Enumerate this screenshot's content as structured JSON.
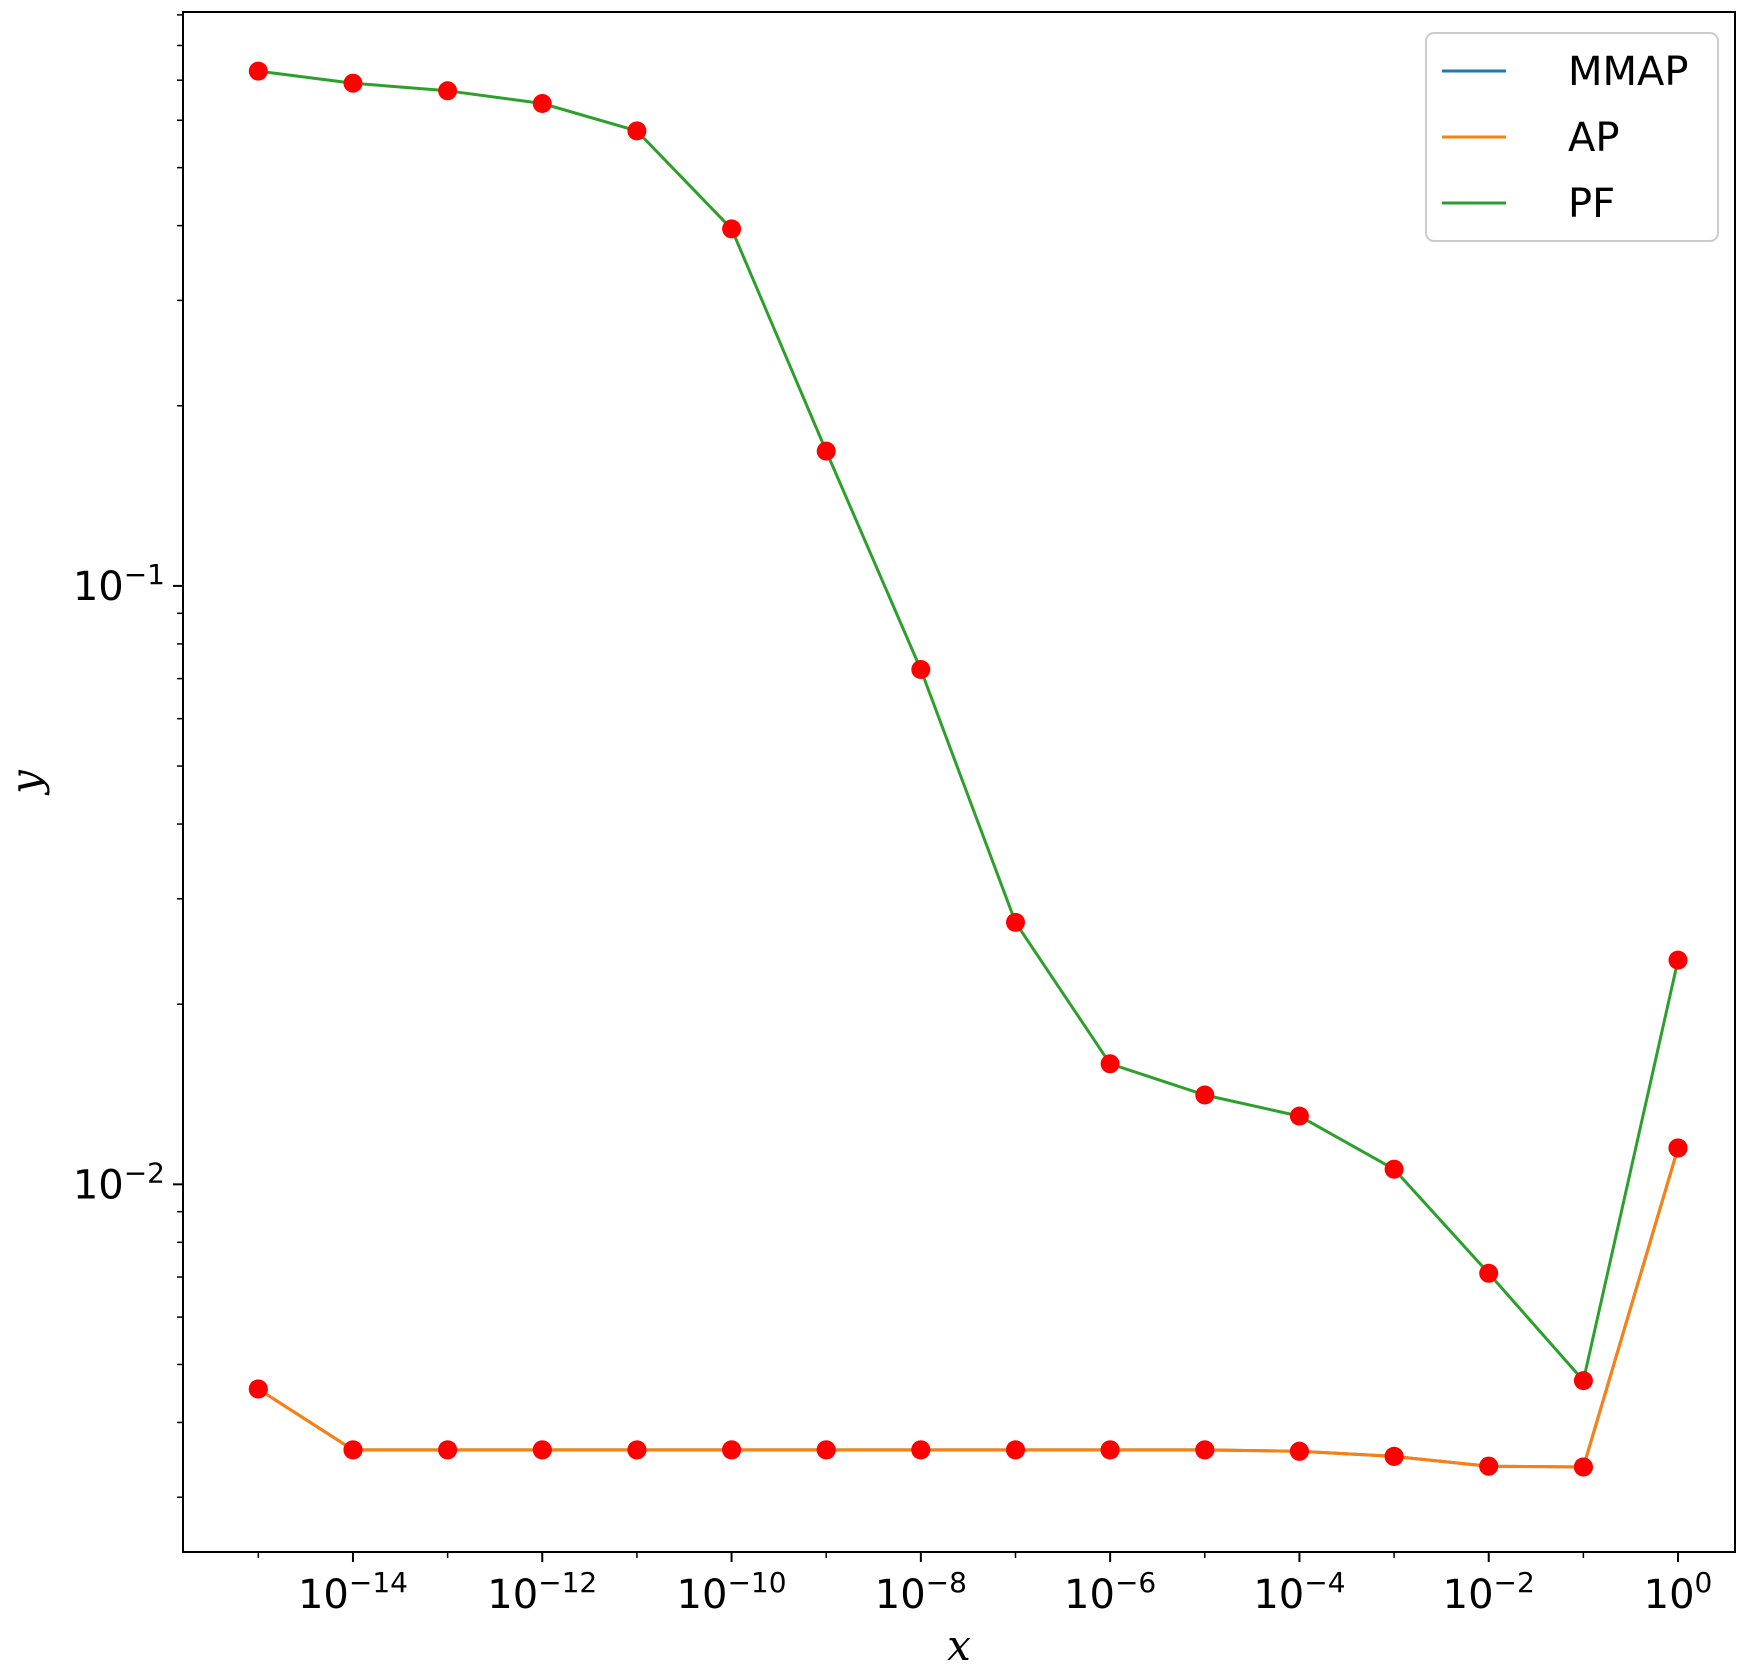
{
  "chart_data": {
    "type": "line",
    "xlabel": "x",
    "ylabel": "y",
    "xscale": "log",
    "yscale": "log",
    "xlim": [
      1.6e-16,
      4.0
    ],
    "ylim": [
      0.00243,
      0.91
    ],
    "x_ticks": [
      {
        "base": "10",
        "exp": "−14",
        "value": 1e-14
      },
      {
        "base": "10",
        "exp": "−12",
        "value": 1e-12
      },
      {
        "base": "10",
        "exp": "−10",
        "value": 1e-10
      },
      {
        "base": "10",
        "exp": "−8",
        "value": 1e-08
      },
      {
        "base": "10",
        "exp": "−6",
        "value": 1e-06
      },
      {
        "base": "10",
        "exp": "−4",
        "value": 0.0001
      },
      {
        "base": "10",
        "exp": "−2",
        "value": 0.01
      },
      {
        "base": "10",
        "exp": "0",
        "value": 1
      }
    ],
    "y_ticks": [
      {
        "base": "10",
        "exp": "−1",
        "value": 0.1
      },
      {
        "base": "10",
        "exp": "−2",
        "value": 0.01
      }
    ],
    "grid": false,
    "legend_position": "top-right",
    "marker_color": "#ff0000",
    "x": [
      1e-15,
      1e-14,
      1e-13,
      1e-12,
      1e-11,
      1e-10,
      1e-09,
      1e-08,
      1e-07,
      1e-06,
      1e-05,
      0.0001,
      0.001,
      0.01,
      0.1,
      1
    ],
    "series": [
      {
        "name": "MMAP",
        "color": "#1f77b4",
        "values": [
          0.00455,
          0.0036,
          0.0036,
          0.0036,
          0.0036,
          0.0036,
          0.0036,
          0.0036,
          0.0036,
          0.0036,
          0.0036,
          0.00358,
          0.00351,
          0.00338,
          0.00337,
          0.0115
        ]
      },
      {
        "name": "AP",
        "color": "#ff7f0e",
        "values": [
          0.00455,
          0.0036,
          0.0036,
          0.0036,
          0.0036,
          0.0036,
          0.0036,
          0.0036,
          0.0036,
          0.0036,
          0.0036,
          0.00358,
          0.00351,
          0.00338,
          0.00337,
          0.0115
        ]
      },
      {
        "name": "PF",
        "color": "#2ca02c",
        "values": [
          0.725,
          0.692,
          0.672,
          0.64,
          0.576,
          0.395,
          0.168,
          0.0725,
          0.0274,
          0.0159,
          0.0141,
          0.013,
          0.0106,
          0.0071,
          0.0047,
          0.0237
        ]
      }
    ]
  }
}
